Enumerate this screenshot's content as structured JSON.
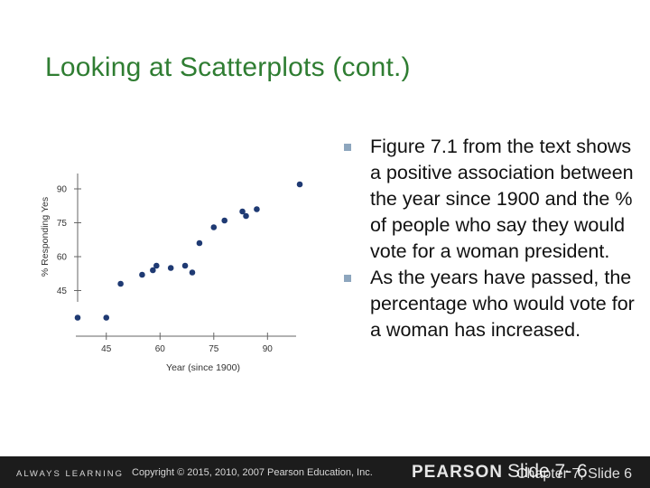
{
  "slide": {
    "title": "Looking at Scatterplots (cont.)",
    "bullets": [
      "Figure 7.1 from the text shows a positive association between the year since 1900 and the % of people who say they would vote for a woman president.",
      "As the years have passed, the percentage who would vote for a woman has increased."
    ]
  },
  "footer": {
    "tagline": "ALWAYS LEARNING",
    "copyright": "Copyright © 2015, 2010, 2007 Pearson Education, Inc.",
    "brand": "PEARSON",
    "slide_label_1": "Slide 7- 6",
    "slide_label_2": "Chapter 7, Slide 6"
  },
  "colors": {
    "title": "#2f7d32",
    "points": "#1f3a73",
    "footer_bg": "#1c1c1c"
  },
  "chart_data": {
    "type": "scatter",
    "xlabel": "Year (since 1900)",
    "ylabel": "% Responding Yes",
    "xticks": [
      45,
      60,
      75,
      90
    ],
    "yticks": [
      45,
      60,
      75,
      90
    ],
    "xlim": [
      37,
      100
    ],
    "ylim": [
      28,
      96
    ],
    "grid": false,
    "points": [
      {
        "x": 37,
        "y": 33
      },
      {
        "x": 45,
        "y": 33
      },
      {
        "x": 49,
        "y": 48
      },
      {
        "x": 55,
        "y": 52
      },
      {
        "x": 58,
        "y": 54
      },
      {
        "x": 59,
        "y": 56
      },
      {
        "x": 63,
        "y": 55
      },
      {
        "x": 67,
        "y": 56
      },
      {
        "x": 69,
        "y": 53
      },
      {
        "x": 71,
        "y": 66
      },
      {
        "x": 75,
        "y": 73
      },
      {
        "x": 78,
        "y": 76
      },
      {
        "x": 83,
        "y": 80
      },
      {
        "x": 84,
        "y": 78
      },
      {
        "x": 87,
        "y": 81
      },
      {
        "x": 99,
        "y": 92
      }
    ]
  }
}
